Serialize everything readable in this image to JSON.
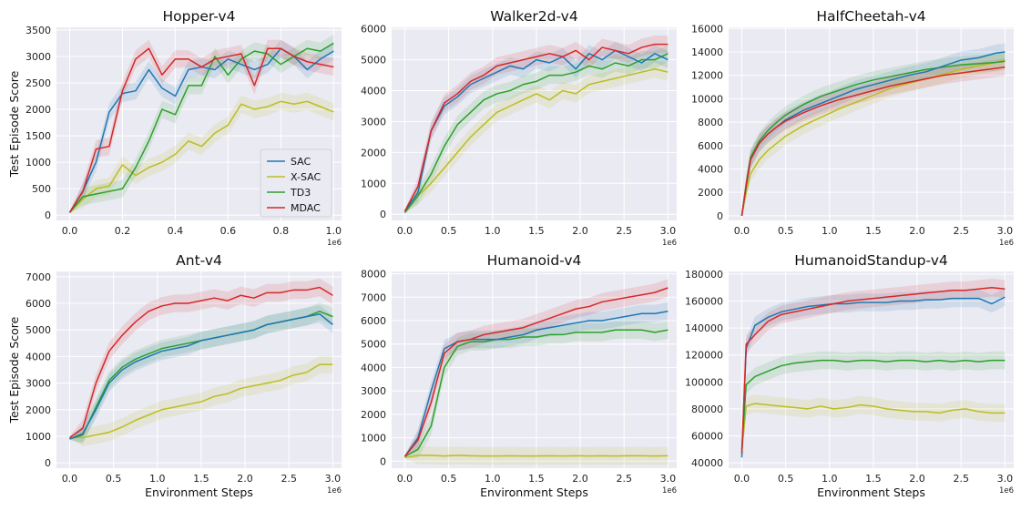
{
  "figure": {
    "ylabel": "Test Episode Score",
    "xlabel": "Environment Steps",
    "colors": {
      "SAC": "#1f77b4",
      "X-SAC": "#bcbd22",
      "TD3": "#2ca02c",
      "MDAC": "#d62728",
      "background": "#eaeaf2",
      "grid": "#ffffff"
    },
    "legend": {
      "location": "lower-right of Hopper-v4 panel",
      "entries": [
        "SAC",
        "X-SAC",
        "TD3",
        "MDAC"
      ]
    }
  },
  "chart_data": [
    {
      "type": "line",
      "title": "Hopper-v4",
      "ylabel": "Test Episode Score",
      "xlabel": "",
      "x_scale": "1e6",
      "xlim": [
        -0.05,
        1.03
      ],
      "ylim": [
        -100,
        3550
      ],
      "xticks": [
        "0.0",
        "0.2",
        "0.4",
        "0.6",
        "0.8",
        "1.0"
      ],
      "xtick_values": [
        0,
        0.2,
        0.4,
        0.6,
        0.8,
        1.0
      ],
      "yticks": [
        "0",
        "500",
        "1000",
        "1500",
        "2000",
        "2500",
        "3000",
        "3500"
      ],
      "ytick_values": [
        0,
        500,
        1000,
        1500,
        2000,
        2500,
        3000,
        3500
      ],
      "x": [
        0,
        0.05,
        0.1,
        0.15,
        0.2,
        0.25,
        0.3,
        0.35,
        0.4,
        0.45,
        0.5,
        0.55,
        0.6,
        0.65,
        0.7,
        0.75,
        0.8,
        0.85,
        0.9,
        0.95,
        1.0
      ],
      "series": [
        {
          "name": "SAC",
          "values": [
            50,
            450,
            1000,
            1950,
            2300,
            2350,
            2750,
            2400,
            2250,
            2750,
            2800,
            2750,
            2950,
            2850,
            2750,
            2850,
            3150,
            3000,
            2750,
            2950,
            3100
          ]
        },
        {
          "name": "X-SAC",
          "values": [
            50,
            300,
            500,
            550,
            950,
            750,
            900,
            1000,
            1150,
            1400,
            1300,
            1550,
            1700,
            2100,
            2000,
            2050,
            2150,
            2100,
            2150,
            2050,
            1950
          ]
        },
        {
          "name": "TD3",
          "values": [
            50,
            350,
            400,
            450,
            500,
            900,
            1400,
            2000,
            1900,
            2450,
            2450,
            3000,
            2650,
            2950,
            3100,
            3050,
            2850,
            3000,
            3150,
            3100,
            3250
          ]
        },
        {
          "name": "MDAC",
          "values": [
            50,
            450,
            1250,
            1300,
            2350,
            2950,
            3150,
            2650,
            2950,
            2950,
            2800,
            2950,
            3000,
            3050,
            2450,
            3150,
            3150,
            3000,
            2900,
            2850,
            2800
          ]
        }
      ]
    },
    {
      "type": "line",
      "title": "Walker2d-v4",
      "ylabel": "",
      "xlabel": "",
      "x_scale": "1e6",
      "xlim": [
        -0.15,
        3.1
      ],
      "ylim": [
        -200,
        6050
      ],
      "xticks": [
        "0.0",
        "0.5",
        "1.0",
        "1.5",
        "2.0",
        "2.5",
        "3.0"
      ],
      "xtick_values": [
        0,
        0.5,
        1.0,
        1.5,
        2.0,
        2.5,
        3.0
      ],
      "yticks": [
        "0",
        "1000",
        "2000",
        "3000",
        "4000",
        "5000",
        "6000"
      ],
      "ytick_values": [
        0,
        1000,
        2000,
        3000,
        4000,
        5000,
        6000
      ],
      "x": [
        0,
        0.15,
        0.3,
        0.45,
        0.6,
        0.75,
        0.9,
        1.05,
        1.2,
        1.35,
        1.5,
        1.65,
        1.8,
        1.95,
        2.1,
        2.25,
        2.4,
        2.55,
        2.7,
        2.85,
        3.0
      ],
      "series": [
        {
          "name": "SAC",
          "values": [
            100,
            700,
            2700,
            3500,
            3800,
            4200,
            4400,
            4600,
            4800,
            4700,
            5000,
            4900,
            5100,
            4700,
            5200,
            5000,
            5300,
            5100,
            4900,
            5200,
            5000
          ]
        },
        {
          "name": "X-SAC",
          "values": [
            50,
            600,
            1000,
            1500,
            2000,
            2500,
            2900,
            3300,
            3500,
            3700,
            3900,
            3700,
            4000,
            3900,
            4200,
            4300,
            4400,
            4500,
            4600,
            4700,
            4600
          ]
        },
        {
          "name": "TD3",
          "values": [
            50,
            600,
            1300,
            2200,
            2900,
            3300,
            3700,
            3900,
            4000,
            4200,
            4300,
            4500,
            4500,
            4600,
            4800,
            4700,
            4900,
            4800,
            5000,
            5000,
            5200
          ]
        },
        {
          "name": "MDAC",
          "values": [
            100,
            900,
            2700,
            3600,
            3900,
            4300,
            4500,
            4800,
            4900,
            5000,
            5100,
            5200,
            5100,
            5300,
            5000,
            5400,
            5300,
            5200,
            5400,
            5500,
            5500
          ]
        }
      ]
    },
    {
      "type": "line",
      "title": "HalfCheetah-v4",
      "ylabel": "",
      "xlabel": "",
      "x_scale": "1e6",
      "xlim": [
        -0.15,
        3.1
      ],
      "ylim": [
        -400,
        16100
      ],
      "xticks": [
        "0.0",
        "0.5",
        "1.0",
        "1.5",
        "2.0",
        "2.5",
        "3.0"
      ],
      "xtick_values": [
        0,
        0.5,
        1.0,
        1.5,
        2.0,
        2.5,
        3.0
      ],
      "yticks": [
        "0",
        "2000",
        "4000",
        "6000",
        "8000",
        "10000",
        "12000",
        "14000",
        "16000"
      ],
      "ytick_values": [
        0,
        2000,
        4000,
        6000,
        8000,
        10000,
        12000,
        14000,
        16000
      ],
      "x": [
        0,
        0.05,
        0.1,
        0.2,
        0.3,
        0.4,
        0.5,
        0.7,
        0.9,
        1.1,
        1.3,
        1.5,
        1.7,
        1.9,
        2.1,
        2.3,
        2.5,
        2.7,
        2.9,
        3.0
      ],
      "series": [
        {
          "name": "SAC",
          "values": [
            0,
            2500,
            4800,
            6200,
            7000,
            7600,
            8200,
            9000,
            9600,
            10200,
            10800,
            11200,
            11600,
            12000,
            12300,
            12800,
            13300,
            13500,
            13900,
            14000
          ]
        },
        {
          "name": "X-SAC",
          "values": [
            0,
            2000,
            3600,
            4800,
            5600,
            6200,
            6800,
            7700,
            8400,
            9100,
            9700,
            10300,
            10900,
            11300,
            11700,
            12100,
            12500,
            12800,
            13100,
            13300
          ]
        },
        {
          "name": "TD3",
          "values": [
            0,
            2700,
            5000,
            6400,
            7300,
            8000,
            8600,
            9500,
            10200,
            10700,
            11200,
            11600,
            11900,
            12200,
            12500,
            12700,
            12900,
            13000,
            13100,
            13200
          ]
        },
        {
          "name": "MDAC",
          "values": [
            0,
            2600,
            4800,
            6200,
            7000,
            7600,
            8100,
            8800,
            9400,
            9900,
            10300,
            10700,
            11100,
            11400,
            11700,
            12000,
            12200,
            12400,
            12600,
            12700
          ]
        }
      ]
    },
    {
      "type": "line",
      "title": "Ant-v4",
      "ylabel": "Test Episode Score",
      "xlabel": "Environment Steps",
      "x_scale": "1e6",
      "xlim": [
        -0.15,
        3.1
      ],
      "ylim": [
        -200,
        7200
      ],
      "xticks": [
        "0.0",
        "0.5",
        "1.0",
        "1.5",
        "2.0",
        "2.5",
        "3.0"
      ],
      "xtick_values": [
        0,
        0.5,
        1.0,
        1.5,
        2.0,
        2.5,
        3.0
      ],
      "yticks": [
        "0",
        "1000",
        "2000",
        "3000",
        "4000",
        "5000",
        "6000",
        "7000"
      ],
      "ytick_values": [
        0,
        1000,
        2000,
        3000,
        4000,
        5000,
        6000,
        7000
      ],
      "x": [
        0,
        0.15,
        0.3,
        0.45,
        0.6,
        0.75,
        0.9,
        1.05,
        1.2,
        1.35,
        1.5,
        1.65,
        1.8,
        1.95,
        2.1,
        2.25,
        2.4,
        2.55,
        2.7,
        2.85,
        3.0
      ],
      "series": [
        {
          "name": "SAC",
          "values": [
            900,
            1100,
            2000,
            3000,
            3500,
            3800,
            4000,
            4200,
            4300,
            4400,
            4600,
            4700,
            4800,
            4900,
            5000,
            5200,
            5300,
            5400,
            5500,
            5600,
            5200
          ]
        },
        {
          "name": "X-SAC",
          "values": [
            950,
            950,
            1050,
            1150,
            1350,
            1600,
            1800,
            2000,
            2100,
            2200,
            2300,
            2500,
            2600,
            2800,
            2900,
            3000,
            3100,
            3300,
            3400,
            3700,
            3700
          ]
        },
        {
          "name": "TD3",
          "values": [
            900,
            1050,
            2100,
            3100,
            3600,
            3900,
            4100,
            4300,
            4400,
            4500,
            4600,
            4700,
            4800,
            4900,
            5000,
            5200,
            5300,
            5400,
            5500,
            5700,
            5500
          ]
        },
        {
          "name": "MDAC",
          "values": [
            950,
            1300,
            3000,
            4200,
            4800,
            5300,
            5700,
            5900,
            6000,
            6000,
            6100,
            6200,
            6100,
            6300,
            6200,
            6400,
            6400,
            6500,
            6500,
            6600,
            6300
          ]
        }
      ]
    },
    {
      "type": "line",
      "title": "Humanoid-v4",
      "ylabel": "",
      "xlabel": "Environment Steps",
      "x_scale": "1e6",
      "xlim": [
        -0.15,
        3.1
      ],
      "ylim": [
        -300,
        8100
      ],
      "xticks": [
        "0.0",
        "0.5",
        "1.0",
        "1.5",
        "2.0",
        "2.5",
        "3.0"
      ],
      "xtick_values": [
        0,
        0.5,
        1.0,
        1.5,
        2.0,
        2.5,
        3.0
      ],
      "yticks": [
        "0",
        "1000",
        "2000",
        "3000",
        "4000",
        "5000",
        "6000",
        "7000",
        "8000"
      ],
      "ytick_values": [
        0,
        1000,
        2000,
        3000,
        4000,
        5000,
        6000,
        7000,
        8000
      ],
      "x": [
        0,
        0.15,
        0.3,
        0.45,
        0.6,
        0.75,
        0.9,
        1.05,
        1.2,
        1.35,
        1.5,
        1.65,
        1.8,
        1.95,
        2.1,
        2.25,
        2.4,
        2.55,
        2.7,
        2.85,
        3.0
      ],
      "series": [
        {
          "name": "SAC",
          "values": [
            200,
            1000,
            3000,
            4800,
            5100,
            5200,
            5200,
            5200,
            5300,
            5400,
            5600,
            5700,
            5800,
            5900,
            6000,
            6000,
            6100,
            6200,
            6300,
            6300,
            6400
          ]
        },
        {
          "name": "X-SAC",
          "values": [
            150,
            250,
            250,
            220,
            250,
            230,
            220,
            220,
            230,
            220,
            220,
            230,
            220,
            230,
            220,
            230,
            220,
            230,
            230,
            220,
            230
          ]
        },
        {
          "name": "TD3",
          "values": [
            200,
            500,
            1500,
            4000,
            4900,
            5100,
            5100,
            5200,
            5200,
            5300,
            5300,
            5400,
            5400,
            5500,
            5500,
            5500,
            5600,
            5600,
            5600,
            5500,
            5600
          ]
        },
        {
          "name": "MDAC",
          "values": [
            200,
            900,
            2500,
            4600,
            5100,
            5200,
            5400,
            5500,
            5600,
            5700,
            5900,
            6100,
            6300,
            6500,
            6600,
            6800,
            6900,
            7000,
            7100,
            7200,
            7400
          ]
        }
      ]
    },
    {
      "type": "line",
      "title": "HumanoidStandup-v4",
      "ylabel": "",
      "xlabel": "Environment Steps",
      "x_scale": "1e6",
      "xlim": [
        -0.15,
        3.1
      ],
      "ylim": [
        36000,
        182000
      ],
      "xticks": [
        "0.0",
        "0.5",
        "1.0",
        "1.5",
        "2.0",
        "2.5",
        "3.0"
      ],
      "xtick_values": [
        0,
        0.5,
        1.0,
        1.5,
        2.0,
        2.5,
        3.0
      ],
      "yticks": [
        "40000",
        "60000",
        "80000",
        "100000",
        "120000",
        "140000",
        "160000",
        "180000"
      ],
      "ytick_values": [
        40000,
        60000,
        80000,
        100000,
        120000,
        140000,
        160000,
        180000
      ],
      "x": [
        0,
        0.05,
        0.15,
        0.3,
        0.45,
        0.6,
        0.75,
        0.9,
        1.05,
        1.2,
        1.35,
        1.5,
        1.65,
        1.8,
        1.95,
        2.1,
        2.25,
        2.4,
        2.55,
        2.7,
        2.85,
        3.0
      ],
      "series": [
        {
          "name": "SAC",
          "values": [
            44000,
            125000,
            142000,
            148000,
            152000,
            154000,
            156000,
            157000,
            158000,
            158000,
            159000,
            159000,
            159000,
            160000,
            160000,
            161000,
            161000,
            162000,
            162000,
            162000,
            158000,
            163000
          ]
        },
        {
          "name": "X-SAC",
          "values": [
            48000,
            82000,
            84000,
            83000,
            82000,
            81000,
            80000,
            82000,
            80000,
            81000,
            83000,
            82000,
            80000,
            79000,
            78000,
            78000,
            77000,
            79000,
            80000,
            78000,
            77000,
            77000
          ]
        },
        {
          "name": "TD3",
          "values": [
            50000,
            98000,
            104000,
            108000,
            112000,
            114000,
            115000,
            116000,
            116000,
            115000,
            116000,
            116000,
            115000,
            116000,
            116000,
            115000,
            116000,
            115000,
            116000,
            115000,
            116000,
            116000
          ]
        },
        {
          "name": "MDAC",
          "values": [
            47000,
            128000,
            135000,
            145000,
            150000,
            152000,
            154000,
            156000,
            158000,
            160000,
            161000,
            162000,
            163000,
            164000,
            165000,
            166000,
            167000,
            168000,
            168000,
            169000,
            170000,
            169000
          ]
        }
      ]
    }
  ]
}
